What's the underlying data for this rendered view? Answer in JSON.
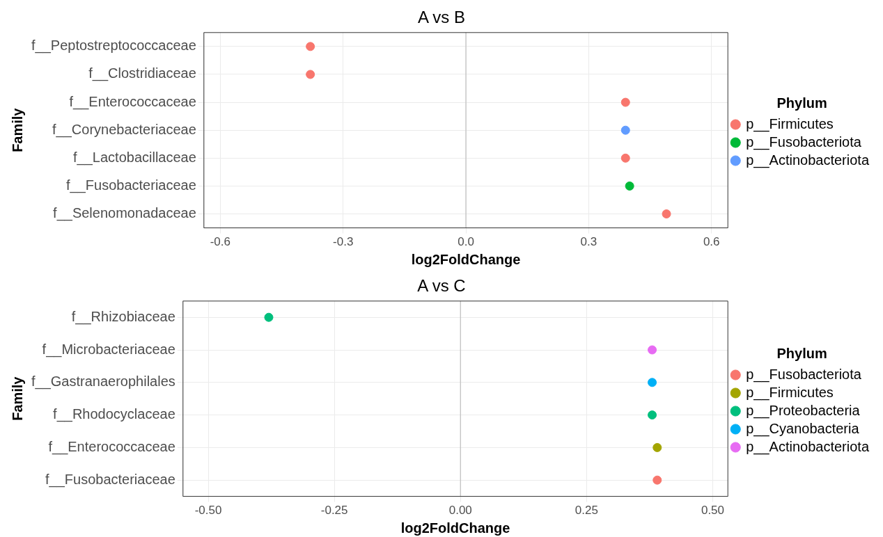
{
  "chart_data": [
    {
      "type": "scatter",
      "title": "A vs B",
      "xlabel": "log2FoldChange",
      "ylabel": "Family",
      "legend_title": "Phylum",
      "orientation": "horizontal",
      "categories": [
        "f__Peptostreptococcaceae",
        "f__Clostridiaceae",
        "f__Enterococcaceae",
        "f__Corynebacteriaceae",
        "f__Lactobacillaceae",
        "f__Fusobacteriaceae",
        "f__Selenomonadaceae"
      ],
      "series": [
        {
          "name": "p__Firmicutes",
          "color": "#f8766d",
          "values": [
            -0.38,
            -0.38,
            0.39,
            null,
            0.39,
            null,
            0.49
          ]
        },
        {
          "name": "p__Fusobacteriota",
          "color": "#00ba38",
          "values": [
            null,
            null,
            null,
            null,
            null,
            0.4,
            null
          ]
        },
        {
          "name": "p__Actinobacteriota",
          "color": "#619cff",
          "values": [
            null,
            null,
            null,
            0.39,
            null,
            null,
            null
          ]
        }
      ],
      "xlim": [
        -0.64,
        0.64
      ],
      "xticks": [
        -0.6,
        -0.3,
        {
          "value": 0,
          "label": "0.0"
        },
        0.3,
        0.6
      ],
      "ref_lines": [
        {
          "axis": "x",
          "value": 0,
          "color": "#bebebe"
        }
      ],
      "grid": true,
      "legend": "right",
      "marker": "circle"
    },
    {
      "type": "scatter",
      "title": "A vs C",
      "xlabel": "log2FoldChange",
      "ylabel": "Family",
      "legend_title": "Phylum",
      "orientation": "horizontal",
      "categories": [
        "f__Rhizobiaceae",
        "f__Microbacteriaceae",
        "f__Gastranaerophilales",
        "f__Rhodocyclaceae",
        "f__Enterococcaceae",
        "f__Fusobacteriaceae"
      ],
      "series": [
        {
          "name": "p__Fusobacteriota",
          "color": "#f8766d",
          "values": [
            null,
            null,
            null,
            null,
            null,
            0.39
          ]
        },
        {
          "name": "p__Firmicutes",
          "color": "#a3a500",
          "values": [
            null,
            null,
            null,
            null,
            0.39,
            null
          ]
        },
        {
          "name": "p__Proteobacteria",
          "color": "#00bf7d",
          "values": [
            -0.38,
            null,
            null,
            0.38,
            null,
            null
          ]
        },
        {
          "name": "p__Cyanobacteria",
          "color": "#00b0f6",
          "values": [
            null,
            null,
            0.38,
            null,
            null,
            null
          ]
        },
        {
          "name": "p__Actinobacteriota",
          "color": "#e76bf3",
          "values": [
            null,
            0.38,
            null,
            null,
            null,
            null
          ]
        }
      ],
      "xlim": [
        -0.55,
        0.53
      ],
      "xticks": [
        {
          "value": -0.5,
          "label": "-0.50"
        },
        {
          "value": -0.25,
          "label": "-0.25"
        },
        {
          "value": 0,
          "label": "0.00"
        },
        {
          "value": 0.25,
          "label": "0.25"
        },
        {
          "value": 0.5,
          "label": "0.50"
        }
      ],
      "ref_lines": [
        {
          "axis": "x",
          "value": 0,
          "color": "#bebebe"
        }
      ],
      "grid": true,
      "legend": "right",
      "marker": "circle"
    }
  ]
}
